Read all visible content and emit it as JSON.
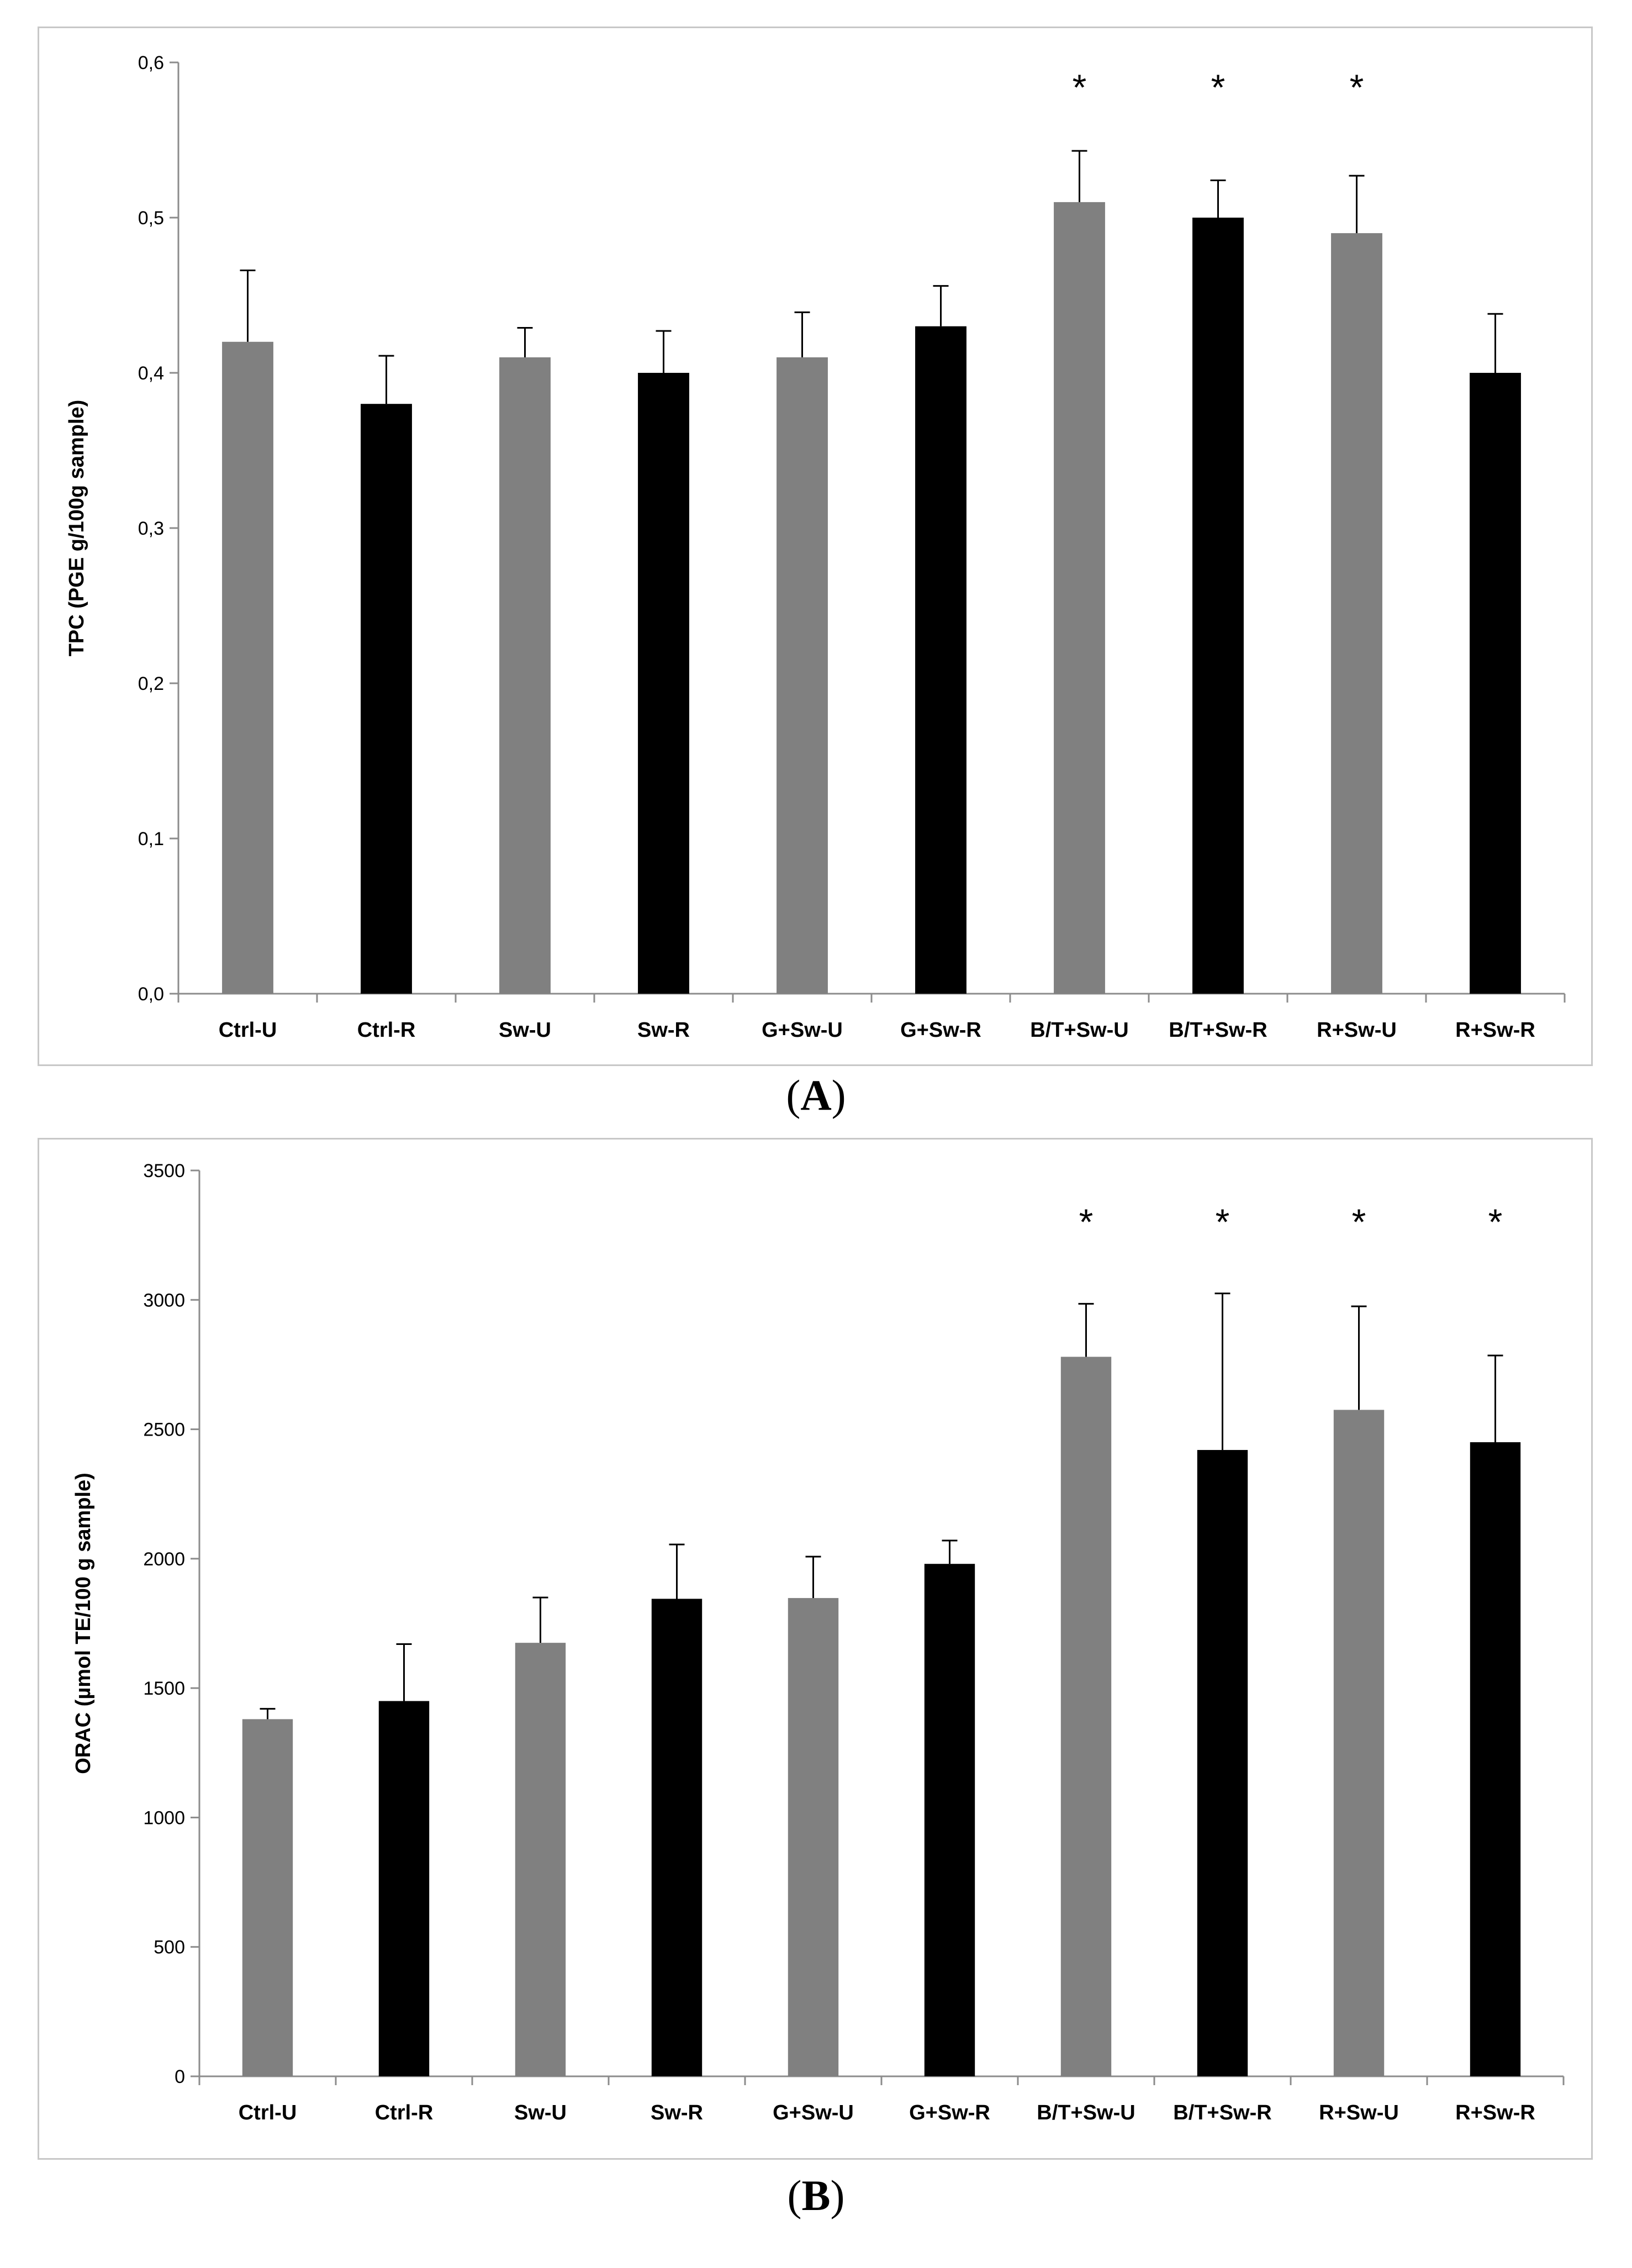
{
  "chart_data": [
    {
      "id": "A",
      "type": "bar",
      "panel_label": "A",
      "title": "",
      "xlabel": "",
      "ylabel": "TPC (PGE g/100g sample)",
      "ylim": [
        0,
        0.6
      ],
      "yticks": [
        "0,0",
        "0,1",
        "0,2",
        "0,3",
        "0,4",
        "0,5",
        "0,6"
      ],
      "ytick_values": [
        0,
        0.1,
        0.2,
        0.3,
        0.4,
        0.5,
        0.6
      ],
      "categories": [
        "Ctrl-U",
        "Ctrl-R",
        "Sw-U",
        "Sw-R",
        "G+Sw-U",
        "G+Sw-R",
        "B/T+Sw-U",
        "B/T+Sw-R",
        "R+Sw-U",
        "R+Sw-R"
      ],
      "values": [
        0.42,
        0.38,
        0.41,
        0.4,
        0.41,
        0.43,
        0.51,
        0.5,
        0.49,
        0.4
      ],
      "errors": [
        0.046,
        0.031,
        0.019,
        0.027,
        0.029,
        0.026,
        0.033,
        0.024,
        0.037,
        0.038
      ],
      "significant": [
        false,
        false,
        false,
        false,
        false,
        false,
        true,
        true,
        true,
        false
      ],
      "significance_marker": "*",
      "colors": [
        "#808080",
        "#000000",
        "#808080",
        "#000000",
        "#808080",
        "#000000",
        "#808080",
        "#000000",
        "#808080",
        "#000000"
      ]
    },
    {
      "id": "B",
      "type": "bar",
      "panel_label": "B",
      "title": "",
      "xlabel": "",
      "ylabel": "ORAC (µmol TE/100 g sample)",
      "ylim": [
        0,
        3500
      ],
      "yticks": [
        "0",
        "500",
        "1000",
        "1500",
        "2000",
        "2500",
        "3000",
        "3500"
      ],
      "ytick_values": [
        0,
        500,
        1000,
        1500,
        2000,
        2500,
        3000,
        3500
      ],
      "categories": [
        "Ctrl-U",
        "Ctrl-R",
        "Sw-U",
        "Sw-R",
        "G+Sw-U",
        "G+Sw-R",
        "B/T+Sw-U",
        "B/T+Sw-R",
        "R+Sw-U",
        "R+Sw-R"
      ],
      "values": [
        1380,
        1450,
        1675,
        1845,
        1848,
        1980,
        2780,
        2420,
        2575,
        2450
      ],
      "errors": [
        40,
        220,
        175,
        210,
        160,
        90,
        205,
        605,
        400,
        335
      ],
      "significant": [
        false,
        false,
        false,
        false,
        false,
        false,
        true,
        true,
        true,
        true
      ],
      "significance_marker": "*",
      "colors": [
        "#808080",
        "#000000",
        "#808080",
        "#000000",
        "#808080",
        "#000000",
        "#808080",
        "#000000",
        "#808080",
        "#000000"
      ]
    }
  ]
}
